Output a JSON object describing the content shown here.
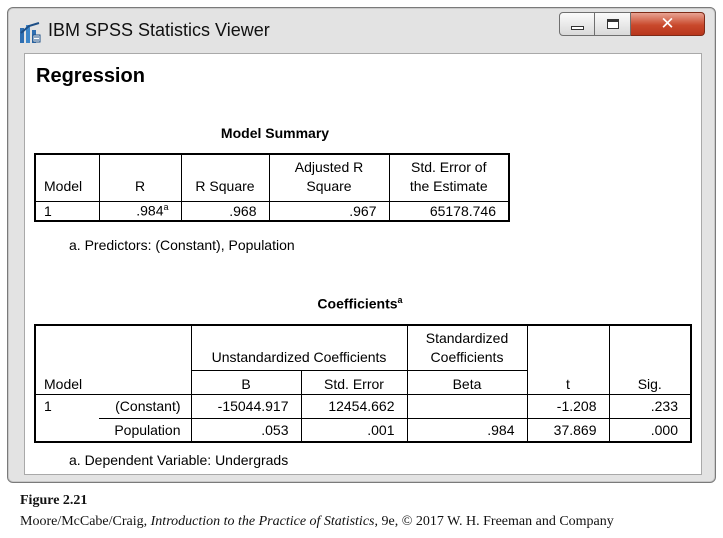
{
  "window": {
    "title": "IBM SPSS Statistics Viewer",
    "close_glyph": "✕",
    "icons": {
      "app": "spss-viewer-icon",
      "minimize": "minimize-icon",
      "maximize": "maximize-icon",
      "close": "close-icon"
    }
  },
  "output": {
    "heading": "Regression",
    "model_summary": {
      "title": "Model Summary",
      "columns": [
        "Model",
        "R",
        "R Square",
        "Adjusted R Square",
        "Std. Error of the Estimate"
      ],
      "header": {
        "model": "Model",
        "r": "R",
        "r_square": "R Square",
        "adj_r_line1": "Adjusted R",
        "adj_r_line2": "Square",
        "std_err_line1": "Std. Error of",
        "std_err_line2": "the Estimate"
      },
      "rows": [
        {
          "model": "1",
          "r": ".984",
          "r_note": "a",
          "r_square": ".968",
          "adj_r_square": ".967",
          "std_error": "65178.746"
        }
      ],
      "footnote": "a. Predictors: (Constant), Population"
    },
    "coefficients": {
      "title": "Coefficients",
      "title_note": "a",
      "header": {
        "unstd": "Unstandardized Coefficients",
        "std_line1": "Standardized",
        "std_line2": "Coefficients",
        "model": "Model",
        "b": "B",
        "std_error": "Std. Error",
        "beta": "Beta",
        "t": "t",
        "sig": "Sig."
      },
      "rows": [
        {
          "model": "1",
          "term": "(Constant)",
          "b": "-15044.917",
          "std_error": "12454.662",
          "beta": "",
          "t": "-1.208",
          "sig": ".233"
        },
        {
          "model": "",
          "term": "Population",
          "b": ".053",
          "std_error": ".001",
          "beta": ".984",
          "t": "37.869",
          "sig": ".000"
        }
      ],
      "footnote": "a. Dependent Variable: Undergrads"
    }
  },
  "caption": {
    "figure": "Figure 2.21",
    "authors": "Moore/McCabe/Craig, ",
    "book": "Introduction to the Practice of Statistics",
    "rest": ", 9e, © 2017 W. H. Freeman and Company"
  },
  "colors": {
    "close_button": "#c9492c",
    "window_frame": "#e3e3e3"
  }
}
